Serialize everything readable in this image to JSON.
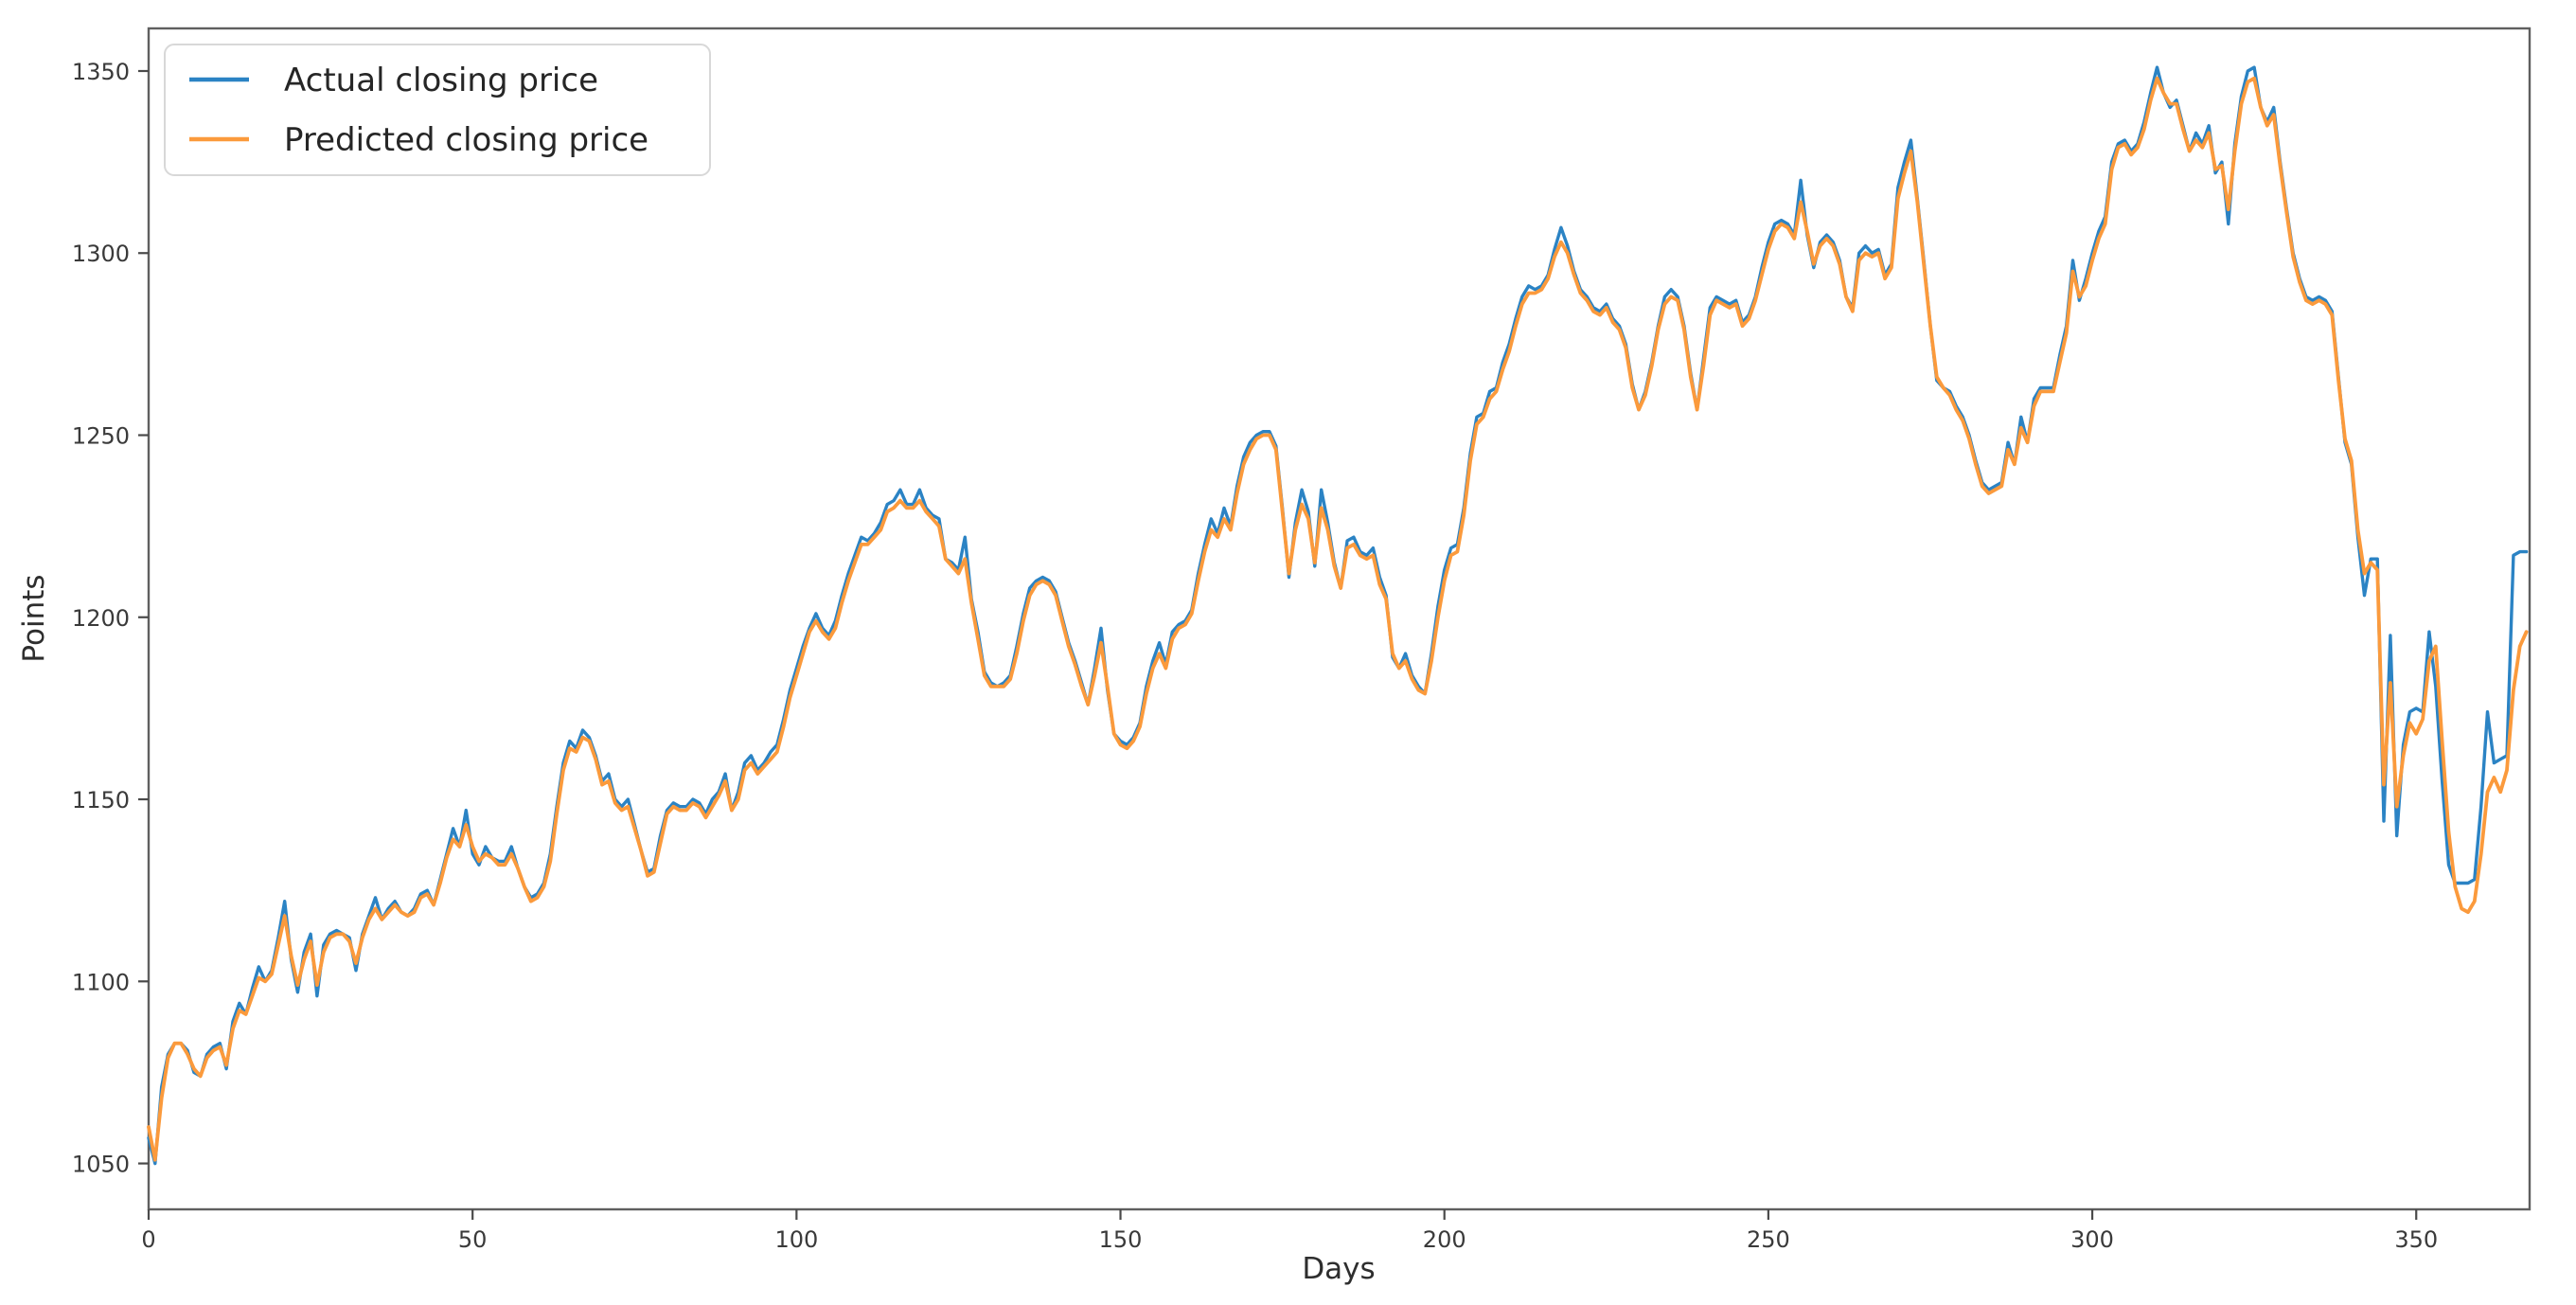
{
  "figure": {
    "background": "#ffffff",
    "spine_color": "#5f5f5f",
    "tick_color": "#4a4a4a",
    "tick_label_color": "#3a3a3a",
    "legend_border_color": "#d8d8d8",
    "legend_background": "#ffffff"
  },
  "chart_data": {
    "type": "line",
    "title": "",
    "xlabel": "Days",
    "ylabel": "Points",
    "xlim": [
      0,
      367.5
    ],
    "ylim": [
      1037.4,
      1361.7
    ],
    "x_ticks": [
      0,
      50,
      100,
      150,
      200,
      250,
      300,
      350
    ],
    "y_ticks": [
      1050,
      1100,
      1150,
      1200,
      1250,
      1300,
      1350
    ],
    "grid": false,
    "legend_position": "upper-left",
    "x_start": 0,
    "x_step": 1,
    "series": [
      {
        "name": "Actual closing price",
        "color": "#2b83c4",
        "values": [
          1057,
          1050,
          1071,
          1080,
          1083,
          1083,
          1081,
          1075,
          1074,
          1080,
          1082,
          1083,
          1076,
          1089,
          1094,
          1091,
          1098,
          1104,
          1100,
          1103,
          1112,
          1122,
          1106,
          1097,
          1108,
          1113,
          1096,
          1110,
          1113,
          1114,
          1113,
          1112,
          1103,
          1113,
          1118,
          1123,
          1117,
          1120,
          1122,
          1119,
          1118,
          1120,
          1124,
          1125,
          1121,
          1128,
          1135,
          1142,
          1137,
          1147,
          1135,
          1132,
          1137,
          1134,
          1133,
          1133,
          1137,
          1131,
          1126,
          1123,
          1124,
          1127,
          1135,
          1148,
          1160,
          1166,
          1164,
          1169,
          1167,
          1162,
          1155,
          1157,
          1150,
          1148,
          1150,
          1143,
          1136,
          1130,
          1131,
          1140,
          1147,
          1149,
          1148,
          1148,
          1150,
          1149,
          1146,
          1150,
          1152,
          1157,
          1147,
          1152,
          1160,
          1162,
          1158,
          1160,
          1163,
          1165,
          1172,
          1180,
          1186,
          1192,
          1197,
          1201,
          1197,
          1195,
          1199,
          1206,
          1212,
          1217,
          1222,
          1221,
          1223,
          1226,
          1231,
          1232,
          1235,
          1231,
          1231,
          1235,
          1230,
          1228,
          1227,
          1216,
          1215,
          1213,
          1222,
          1205,
          1196,
          1185,
          1182,
          1181,
          1182,
          1184,
          1192,
          1201,
          1208,
          1210,
          1211,
          1210,
          1207,
          1200,
          1193,
          1188,
          1182,
          1176,
          1186,
          1197,
          1180,
          1168,
          1166,
          1165,
          1167,
          1171,
          1181,
          1188,
          1193,
          1187,
          1196,
          1198,
          1199,
          1202,
          1212,
          1220,
          1227,
          1223,
          1230,
          1225,
          1236,
          1244,
          1248,
          1250,
          1251,
          1251,
          1247,
          1230,
          1211,
          1226,
          1235,
          1229,
          1214,
          1235,
          1226,
          1215,
          1208,
          1221,
          1222,
          1218,
          1217,
          1219,
          1211,
          1206,
          1189,
          1186,
          1190,
          1184,
          1181,
          1179,
          1190,
          1203,
          1213,
          1219,
          1220,
          1230,
          1245,
          1255,
          1256,
          1262,
          1263,
          1270,
          1275,
          1282,
          1288,
          1291,
          1290,
          1291,
          1294,
          1301,
          1307,
          1302,
          1295,
          1290,
          1288,
          1285,
          1284,
          1286,
          1282,
          1280,
          1275,
          1264,
          1257,
          1262,
          1270,
          1280,
          1288,
          1290,
          1288,
          1280,
          1267,
          1257,
          1271,
          1285,
          1288,
          1287,
          1286,
          1287,
          1281,
          1283,
          1288,
          1296,
          1303,
          1308,
          1309,
          1308,
          1305,
          1320,
          1305,
          1296,
          1303,
          1305,
          1303,
          1298,
          1288,
          1285,
          1300,
          1302,
          1300,
          1301,
          1294,
          1297,
          1318,
          1325,
          1331,
          1315,
          1298,
          1280,
          1265,
          1263,
          1262,
          1258,
          1255,
          1250,
          1243,
          1237,
          1235,
          1236,
          1237,
          1248,
          1242,
          1255,
          1248,
          1260,
          1263,
          1263,
          1263,
          1272,
          1280,
          1298,
          1287,
          1293,
          1300,
          1306,
          1310,
          1325,
          1330,
          1331,
          1328,
          1330,
          1336,
          1344,
          1351,
          1344,
          1340,
          1342,
          1335,
          1328,
          1333,
          1330,
          1335,
          1322,
          1325,
          1308,
          1330,
          1343,
          1350,
          1351,
          1340,
          1336,
          1340,
          1325,
          1312,
          1300,
          1293,
          1288,
          1287,
          1288,
          1287,
          1284,
          1266,
          1248,
          1242,
          1222,
          1206,
          1216,
          1216,
          1144,
          1195,
          1140,
          1165,
          1174,
          1175,
          1174,
          1196,
          1181,
          1155,
          1132,
          1127,
          1127,
          1127,
          1128,
          1148,
          1174,
          1160,
          1161,
          1162,
          1217,
          1218,
          1218
        ]
      },
      {
        "name": "Predicted closing price",
        "color": "#fb9a3c",
        "values": [
          1060,
          1051,
          1068,
          1079,
          1083,
          1083,
          1080,
          1076,
          1074,
          1079,
          1081,
          1082,
          1077,
          1087,
          1092,
          1091,
          1096,
          1101,
          1100,
          1102,
          1110,
          1118,
          1107,
          1099,
          1106,
          1111,
          1099,
          1108,
          1112,
          1113,
          1113,
          1111,
          1105,
          1112,
          1117,
          1120,
          1117,
          1119,
          1121,
          1119,
          1118,
          1119,
          1123,
          1124,
          1121,
          1127,
          1134,
          1139,
          1137,
          1143,
          1137,
          1133,
          1135,
          1134,
          1132,
          1132,
          1135,
          1131,
          1126,
          1122,
          1123,
          1126,
          1133,
          1146,
          1158,
          1164,
          1163,
          1167,
          1166,
          1161,
          1154,
          1155,
          1149,
          1147,
          1148,
          1142,
          1136,
          1129,
          1130,
          1138,
          1146,
          1148,
          1147,
          1147,
          1149,
          1148,
          1145,
          1148,
          1151,
          1155,
          1147,
          1150,
          1158,
          1160,
          1157,
          1159,
          1161,
          1163,
          1170,
          1178,
          1184,
          1190,
          1196,
          1199,
          1196,
          1194,
          1197,
          1204,
          1210,
          1215,
          1220,
          1220,
          1222,
          1224,
          1229,
          1230,
          1232,
          1230,
          1230,
          1232,
          1229,
          1227,
          1225,
          1216,
          1214,
          1212,
          1216,
          1204,
          1194,
          1184,
          1181,
          1181,
          1181,
          1183,
          1190,
          1199,
          1206,
          1209,
          1210,
          1209,
          1206,
          1199,
          1192,
          1187,
          1181,
          1176,
          1184,
          1193,
          1181,
          1168,
          1165,
          1164,
          1166,
          1170,
          1179,
          1186,
          1190,
          1186,
          1194,
          1197,
          1198,
          1201,
          1210,
          1218,
          1224,
          1222,
          1227,
          1224,
          1234,
          1242,
          1246,
          1249,
          1250,
          1250,
          1246,
          1229,
          1212,
          1224,
          1231,
          1227,
          1215,
          1230,
          1224,
          1214,
          1208,
          1219,
          1220,
          1217,
          1216,
          1217,
          1209,
          1205,
          1190,
          1186,
          1188,
          1183,
          1180,
          1179,
          1188,
          1200,
          1210,
          1217,
          1218,
          1228,
          1243,
          1253,
          1255,
          1260,
          1262,
          1268,
          1273,
          1280,
          1286,
          1289,
          1289,
          1290,
          1293,
          1299,
          1303,
          1300,
          1294,
          1289,
          1287,
          1284,
          1283,
          1285,
          1281,
          1279,
          1274,
          1263,
          1257,
          1261,
          1269,
          1279,
          1286,
          1288,
          1287,
          1279,
          1266,
          1257,
          1269,
          1283,
          1287,
          1286,
          1285,
          1286,
          1280,
          1282,
          1287,
          1294,
          1301,
          1306,
          1308,
          1307,
          1304,
          1314,
          1306,
          1297,
          1302,
          1304,
          1302,
          1297,
          1288,
          1284,
          1298,
          1300,
          1299,
          1300,
          1293,
          1296,
          1315,
          1322,
          1328,
          1314,
          1297,
          1280,
          1266,
          1263,
          1261,
          1257,
          1254,
          1249,
          1242,
          1236,
          1234,
          1235,
          1236,
          1246,
          1242,
          1252,
          1248,
          1258,
          1262,
          1262,
          1262,
          1270,
          1278,
          1295,
          1288,
          1291,
          1298,
          1304,
          1308,
          1323,
          1329,
          1330,
          1327,
          1329,
          1334,
          1342,
          1348,
          1344,
          1341,
          1341,
          1334,
          1328,
          1331,
          1329,
          1333,
          1323,
          1324,
          1312,
          1328,
          1341,
          1347,
          1348,
          1340,
          1335,
          1338,
          1324,
          1311,
          1299,
          1292,
          1287,
          1286,
          1287,
          1286,
          1283,
          1265,
          1249,
          1243,
          1224,
          1212,
          1215,
          1213,
          1154,
          1182,
          1148,
          1162,
          1171,
          1168,
          1172,
          1188,
          1192,
          1166,
          1141,
          1126,
          1120,
          1119,
          1122,
          1135,
          1152,
          1156,
          1152,
          1158,
          1180,
          1192,
          1196
        ]
      }
    ]
  }
}
